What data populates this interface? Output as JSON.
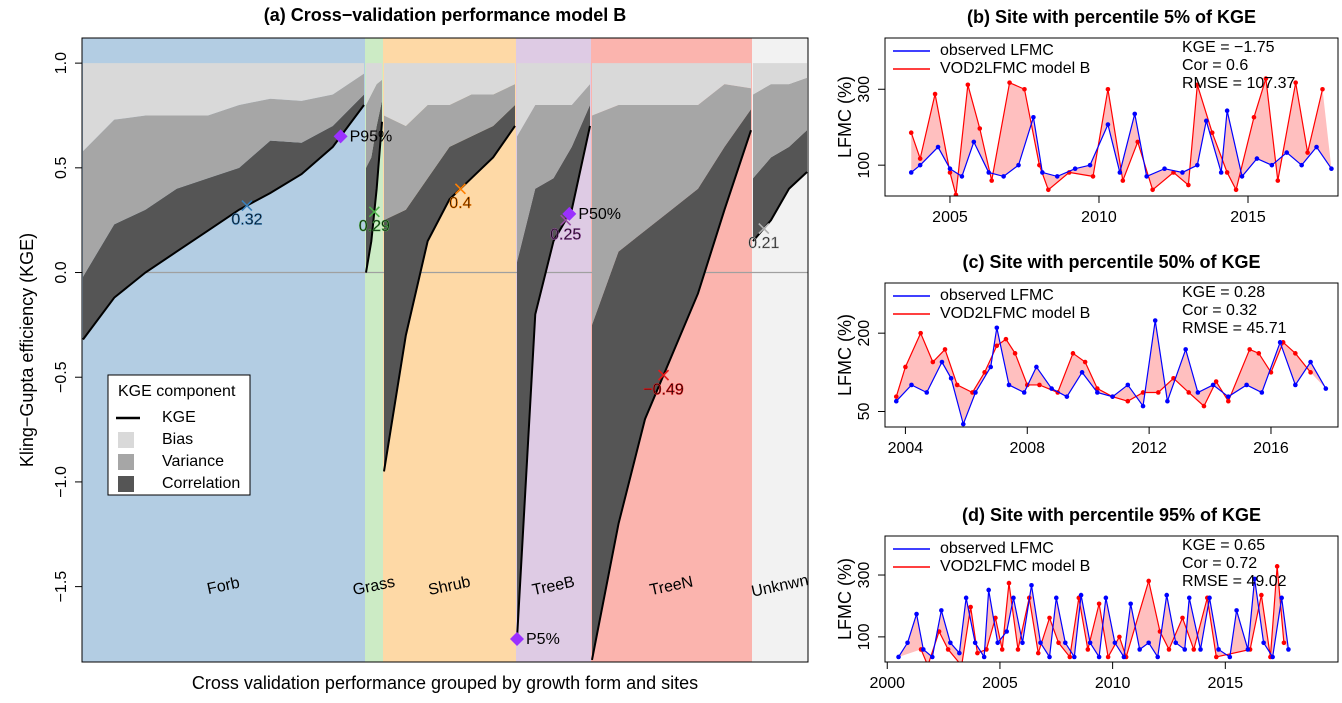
{
  "chart_data": [
    {
      "type": "area",
      "title": "(a) Cross−validation performance model B",
      "y_label": "Kling−Gupta efficiency (KGE)",
      "x_label": "Cross validation performance grouped by growth form and sites",
      "ylim": [
        -1.86,
        1.12
      ],
      "yticks": [
        {
          "value": -1.5,
          "label": "−1.5"
        },
        {
          "value": -1,
          "label": "−1.0"
        },
        {
          "value": -0.5,
          "label": "−0.5"
        },
        {
          "value": 0,
          "label": "0.0"
        },
        0.5,
        {
          "value": 1,
          "label": "1.0"
        }
      ],
      "reference_line": 0,
      "legend_title": "KGE component",
      "components": [
        {
          "name": "KGE",
          "color": "#000000"
        },
        {
          "name": "Bias",
          "color": "#d9d9d9"
        },
        {
          "name": "Variance",
          "color": "#a6a6a6"
        },
        {
          "name": "Correlation",
          "color": "#555555"
        }
      ],
      "groups": [
        {
          "name": "Forb",
          "color": "#b3cde3",
          "text_color": "#377eb8",
          "median": 0.32,
          "kge": [
            -0.32,
            -0.12,
            0.0,
            0.1,
            0.2,
            0.3,
            0.38,
            0.47,
            0.6,
            0.8
          ],
          "correlation": [
            0.3,
            0.35,
            0.3,
            0.3,
            0.25,
            0.2,
            0.25,
            0.15,
            0.1,
            0.05
          ],
          "variance": [
            0.6,
            0.5,
            0.45,
            0.35,
            0.3,
            0.3,
            0.2,
            0.2,
            0.15,
            0.1
          ],
          "bias": [
            0.42,
            0.27,
            0.25,
            0.25,
            0.25,
            0.2,
            0.17,
            0.18,
            0.15,
            0.05
          ]
        },
        {
          "name": "Grass",
          "color": "#ccebc5",
          "text_color": "#4daf4a",
          "median": 0.29,
          "kge": [
            0.0,
            0.15,
            0.4,
            0.72
          ],
          "correlation": [
            0.5,
            0.4,
            0.3,
            0.1
          ],
          "variance": [
            0.3,
            0.3,
            0.2,
            0.1
          ],
          "bias": [
            0.2,
            0.15,
            0.1,
            0.08
          ]
        },
        {
          "name": "Shrub",
          "color": "#fed9a6",
          "text_color": "#ff7f00",
          "median": 0.4,
          "kge": [
            -0.95,
            -0.3,
            0.15,
            0.35,
            0.45,
            0.55,
            0.7
          ],
          "correlation": [
            1.2,
            0.6,
            0.3,
            0.25,
            0.2,
            0.15,
            0.1
          ],
          "variance": [
            0.5,
            0.4,
            0.35,
            0.2,
            0.2,
            0.15,
            0.1
          ],
          "bias": [
            0.25,
            0.3,
            0.2,
            0.2,
            0.15,
            0.15,
            0.1
          ]
        },
        {
          "name": "TreeB",
          "color": "#decbe4",
          "text_color": "#984ea3",
          "median": 0.25,
          "kge": [
            -1.75,
            -0.2,
            0.15,
            0.3,
            0.7
          ],
          "correlation": [
            1.8,
            0.6,
            0.3,
            0.3,
            0.1
          ],
          "variance": [
            0.6,
            0.4,
            0.35,
            0.2,
            0.1
          ],
          "bias": [
            0.35,
            0.2,
            0.2,
            0.2,
            0.1
          ]
        },
        {
          "name": "TreeN",
          "color": "#fbb4ae",
          "text_color": "#e41a1c",
          "median": -0.49,
          "median_label": "−0.49",
          "kge": [
            -1.85,
            -1.2,
            -0.7,
            -0.4,
            -0.1,
            0.3,
            0.68
          ],
          "correlation": [
            1.6,
            1.3,
            0.9,
            0.7,
            0.5,
            0.3,
            0.1
          ],
          "variance": [
            1.0,
            0.7,
            0.6,
            0.5,
            0.4,
            0.3,
            0.1
          ],
          "bias": [
            0.25,
            0.2,
            0.2,
            0.2,
            0.2,
            0.1,
            0.12
          ]
        },
        {
          "name": "Unknwn",
          "color": "#f2f2f2",
          "text_color": "#b0b0b0",
          "median": 0.21,
          "kge": [
            0.15,
            0.25,
            0.4,
            0.48
          ],
          "correlation": [
            0.3,
            0.3,
            0.2,
            0.2
          ],
          "variance": [
            0.4,
            0.35,
            0.3,
            0.25
          ],
          "bias": [
            0.15,
            0.1,
            0.1,
            0.07
          ]
        }
      ],
      "percentiles": [
        {
          "name": "P5%",
          "group": "TreeB",
          "value": -1.75,
          "color": "#9b30ff"
        },
        {
          "name": "P50%",
          "group": "TreeB",
          "value": 0.28,
          "color": "#9b30ff"
        },
        {
          "name": "P95%",
          "group": "Forb",
          "value": 0.65,
          "color": "#9b30ff"
        }
      ]
    },
    {
      "type": "line",
      "title": "(b) Site with percentile 5% of KGE",
      "y_label": "LFMC (%)",
      "log_y": true,
      "xlim": [
        2002.82,
        2018.02
      ],
      "xticks": [
        2005,
        2010,
        2015
      ],
      "ylim": [
        64,
        630
      ],
      "yticks": [
        100,
        300
      ],
      "annotations": [
        "KGE = −1.75",
        "Cor = 0.6",
        "RMSE = 107.37"
      ],
      "series": [
        {
          "name": "observed LFMC",
          "color": "#0000ff",
          "x": [
            2003.7,
            2004.0,
            2004.6,
            2005.0,
            2005.4,
            2005.8,
            2006.3,
            2006.8,
            2007.3,
            2007.8,
            2008.1,
            2008.6,
            2009.2,
            2009.7,
            2010.3,
            2010.7,
            2011.2,
            2011.6,
            2012.2,
            2012.8,
            2013.3,
            2013.6,
            2014.1,
            2014.3,
            2014.8,
            2015.3,
            2015.8,
            2016.3,
            2016.8,
            2017.3,
            2017.8
          ],
          "values": [
            90,
            100,
            130,
            95,
            85,
            140,
            90,
            85,
            100,
            200,
            90,
            85,
            95,
            100,
            180,
            90,
            210,
            85,
            95,
            90,
            100,
            190,
            90,
            220,
            85,
            110,
            100,
            120,
            100,
            130,
            95
          ]
        },
        {
          "name": "VOD2LFMC model B",
          "color": "#ff0000",
          "x": [
            2003.7,
            2004.0,
            2004.5,
            2005.0,
            2005.2,
            2005.6,
            2006.0,
            2006.4,
            2007.0,
            2007.5,
            2008.0,
            2008.3,
            2009.0,
            2009.8,
            2010.3,
            2010.8,
            2011.3,
            2011.8,
            2012.5,
            2013.0,
            2013.3,
            2013.8,
            2014.3,
            2014.6,
            2015.2,
            2015.6,
            2016.0,
            2016.6,
            2017.0,
            2017.5
          ],
          "values": [
            160,
            110,
            280,
            90,
            65,
            320,
            170,
            80,
            330,
            300,
            100,
            70,
            90,
            85,
            300,
            80,
            140,
            70,
            90,
            75,
            320,
            160,
            90,
            70,
            200,
            350,
            80,
            330,
            120,
            300
          ]
        }
      ]
    },
    {
      "type": "line",
      "title": "(c) Site with percentile 50% of KGE",
      "y_label": "LFMC (%)",
      "log_y": true,
      "xlim": [
        2003.33,
        2018.2
      ],
      "xticks": [
        2004,
        2008,
        2012,
        2016
      ],
      "ylim": [
        38,
        486
      ],
      "yticks": [
        50,
        200
      ],
      "annotations": [
        "KGE = 0.28",
        "Cor = 0.32",
        "RMSE = 45.71"
      ],
      "series": [
        {
          "name": "observed LFMC",
          "color": "#0000ff",
          "x": [
            2003.7,
            2004.2,
            2004.7,
            2005.2,
            2005.5,
            2005.9,
            2006.3,
            2006.8,
            2007.0,
            2007.4,
            2007.9,
            2008.3,
            2008.8,
            2009.3,
            2009.8,
            2010.3,
            2010.8,
            2011.3,
            2011.8,
            2012.2,
            2012.6,
            2013.2,
            2013.6,
            2014.1,
            2014.6,
            2015.2,
            2015.7,
            2016.3,
            2016.8,
            2017.3,
            2017.8
          ],
          "values": [
            60,
            80,
            70,
            120,
            90,
            40,
            70,
            110,
            220,
            80,
            70,
            110,
            75,
            65,
            100,
            70,
            65,
            80,
            55,
            250,
            60,
            150,
            70,
            80,
            65,
            80,
            70,
            170,
            80,
            120,
            75
          ]
        },
        {
          "name": "VOD2LFMC model B",
          "color": "#ff0000",
          "x": [
            2003.7,
            2004.0,
            2004.5,
            2004.9,
            2005.3,
            2005.7,
            2006.2,
            2006.6,
            2007.0,
            2007.3,
            2007.6,
            2008.0,
            2008.4,
            2009.0,
            2009.5,
            2009.9,
            2010.3,
            2010.8,
            2011.3,
            2011.8,
            2012.3,
            2012.8,
            2013.3,
            2013.8,
            2014.2,
            2014.6,
            2015.3,
            2015.6,
            2016.0,
            2016.4,
            2016.8,
            2017.3
          ],
          "values": [
            65,
            110,
            200,
            120,
            150,
            80,
            70,
            100,
            160,
            180,
            140,
            80,
            80,
            70,
            140,
            120,
            75,
            65,
            60,
            70,
            70,
            90,
            70,
            55,
            85,
            60,
            150,
            140,
            100,
            170,
            140,
            100
          ]
        }
      ]
    },
    {
      "type": "line",
      "title": "(d) Site with percentile 95% of KGE",
      "y_label": "LFMC (%)",
      "log_y": true,
      "xlim": [
        1999.9,
        2020
      ],
      "xticks": [
        2000,
        2005,
        2010,
        2015
      ],
      "ylim": [
        64,
        600
      ],
      "yticks": [
        100,
        300
      ],
      "annotations": [
        "KGE = 0.65",
        "Cor = 0.72",
        "RMSE = 49.02"
      ],
      "series": [
        {
          "name": "observed LFMC",
          "color": "#0000ff",
          "x": [
            2000.5,
            2000.9,
            2001.3,
            2001.6,
            2002.0,
            2002.4,
            2002.8,
            2003.2,
            2003.5,
            2003.9,
            2004.3,
            2004.5,
            2004.9,
            2005.3,
            2005.6,
            2006.0,
            2006.4,
            2006.8,
            2007.2,
            2007.5,
            2007.9,
            2008.3,
            2008.6,
            2009.0,
            2009.4,
            2009.7,
            2010.1,
            2010.5,
            2010.8,
            2011.2,
            2011.6,
            2012.0,
            2012.4,
            2012.8,
            2013.2,
            2013.4,
            2013.9,
            2014.3,
            2014.7,
            2015.2,
            2015.5,
            2016.0,
            2016.3,
            2016.7,
            2017.1,
            2017.5,
            2017.8
          ],
          "values": [
            70,
            90,
            150,
            80,
            70,
            160,
            90,
            75,
            200,
            90,
            70,
            230,
            90,
            110,
            200,
            90,
            250,
            90,
            70,
            200,
            90,
            70,
            210,
            90,
            70,
            200,
            90,
            70,
            180,
            80,
            90,
            70,
            210,
            90,
            80,
            200,
            80,
            200,
            80,
            70,
            160,
            80,
            280,
            90,
            70,
            200,
            80
          ]
        },
        {
          "name": "VOD2LFMC model B",
          "color": "#ff0000",
          "x": [
            2001.5,
            2001.8,
            2002.3,
            2002.7,
            2003.3,
            2003.7,
            2004.0,
            2004.4,
            2004.8,
            2005.1,
            2005.4,
            2005.8,
            2006.3,
            2006.7,
            2007.2,
            2007.6,
            2008.1,
            2008.5,
            2008.9,
            2009.4,
            2009.8,
            2010.3,
            2010.6,
            2011.6,
            2012.1,
            2012.5,
            2013.1,
            2013.6,
            2014.2,
            2014.6,
            2016.1,
            2016.6,
            2017.0,
            2017.3,
            2017.6
          ],
          "values": [
            80,
            60,
            110,
            80,
            60,
            170,
            75,
            80,
            140,
            80,
            260,
            80,
            200,
            75,
            140,
            90,
            70,
            200,
            80,
            180,
            70,
            100,
            70,
            270,
            110,
            80,
            140,
            80,
            200,
            70,
            80,
            210,
            70,
            350,
            90
          ]
        }
      ]
    }
  ]
}
